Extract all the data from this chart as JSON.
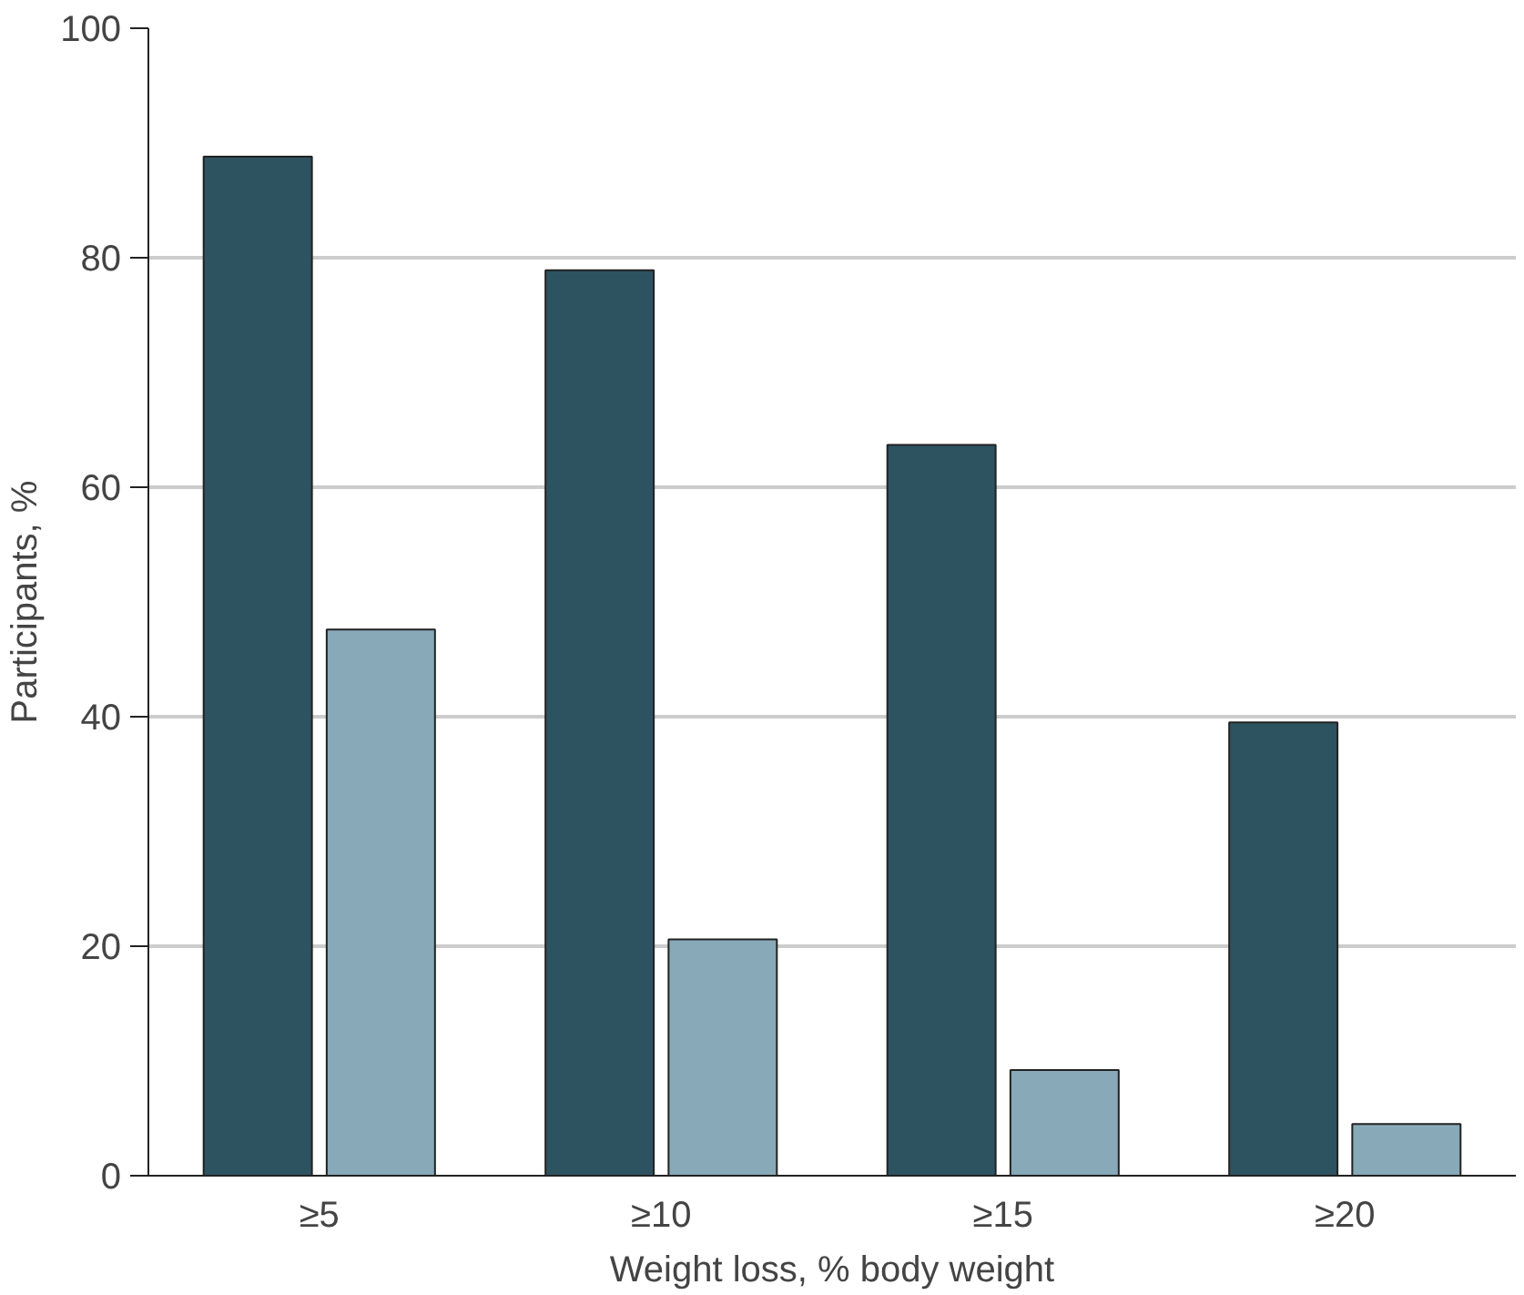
{
  "chart_data": {
    "type": "bar",
    "xlabel": "Weight loss, % body weight",
    "ylabel": "Participants, %",
    "categories": [
      "≥5",
      "≥10",
      "≥15",
      "≥20"
    ],
    "series": [
      {
        "color": "#2e5360",
        "values": [
          88.8,
          78.9,
          63.7,
          39.5
        ]
      },
      {
        "color": "#87a9b8",
        "values": [
          47.6,
          20.6,
          9.2,
          4.5
        ]
      }
    ],
    "ylim": [
      0,
      100
    ],
    "yticks": [
      0,
      20,
      40,
      60,
      80,
      100
    ],
    "grid": "y"
  }
}
